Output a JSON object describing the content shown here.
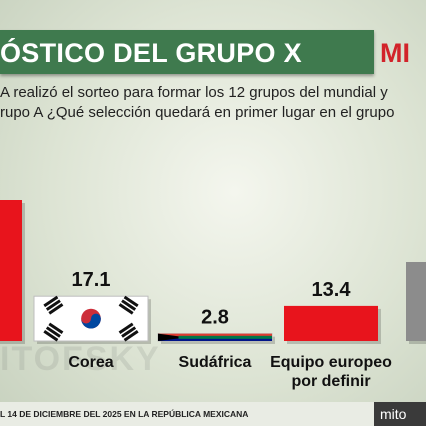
{
  "header": {
    "title": "ÓSTICO DEL GRUPO X",
    "logo": "MI"
  },
  "question": {
    "line1": "A realizó el sorteo para formar los 12 grupos del mundial y",
    "line2": "rupo A ¿Qué selección quedará en primer lugar en el grupo"
  },
  "watermark": "ITOFSKY",
  "footer": {
    "text": "L 14 DE DICIEMBRE DEL 2025 EN LA REPÚBLICA MEXICANA",
    "logo": "mito"
  },
  "colors": {
    "bar_red": "#e8141c",
    "bar_gray": "#8c8c8c"
  },
  "icons": [
    "south-korea-flag",
    "south-africa-flag"
  ],
  "chart_data": {
    "type": "bar",
    "categories": [
      "",
      "Corea",
      "Sudáfrica",
      "Equipo europeo por definir",
      ""
    ],
    "category_lines": [
      [
        ""
      ],
      [
        "Corea"
      ],
      [
        "Sudáfrica"
      ],
      [
        "Equipo europeo",
        "por definir"
      ],
      [
        ""
      ]
    ],
    "values": [
      null,
      17.1,
      2.8,
      13.4,
      null
    ],
    "value_labels": [
      "",
      "17.1",
      "2.8",
      "13.4",
      ""
    ],
    "bar_colors": [
      "#e8141c",
      "#ffffff",
      "#ffffff",
      "#e8141c",
      "#8c8c8c"
    ],
    "flags": [
      null,
      "south-korea-flag",
      "south-africa-flag",
      null,
      null
    ],
    "partial_bar_tops": [
      null,
      null,
      null,
      null,
      null
    ],
    "ylim": [
      0,
      30
    ],
    "title": "",
    "xlabel": "",
    "ylabel": ""
  }
}
